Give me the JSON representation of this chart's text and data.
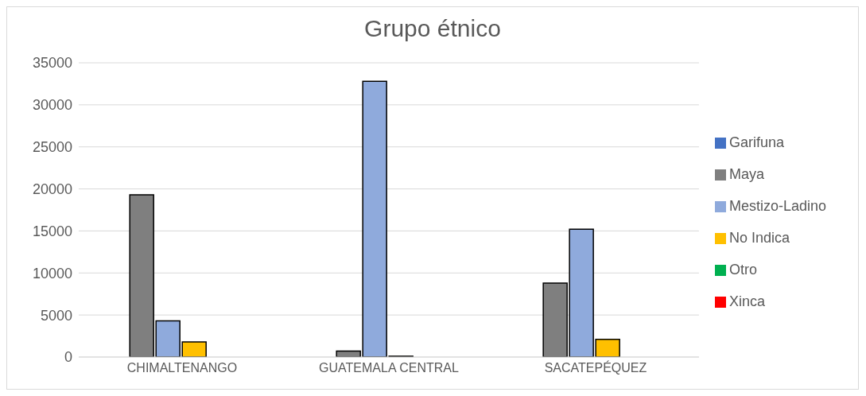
{
  "chart_data": {
    "type": "bar",
    "title": "Grupo étnico",
    "categories": [
      "CHIMALTENANGO",
      "GUATEMALA CENTRAL",
      "SACATEPÉQUEZ"
    ],
    "series": [
      {
        "name": "Garifuna",
        "color": "#4472c4",
        "values": [
          0,
          0,
          0
        ]
      },
      {
        "name": "Maya",
        "color": "#7f7f7f",
        "values": [
          19300,
          700,
          8800
        ]
      },
      {
        "name": "Mestizo-Ladino",
        "color": "#8faadc",
        "values": [
          4300,
          32800,
          15200
        ]
      },
      {
        "name": "No Indica",
        "color": "#ffc000",
        "values": [
          1800,
          100,
          2100
        ]
      },
      {
        "name": "Otro",
        "color": "#00b050",
        "values": [
          0,
          0,
          0
        ]
      },
      {
        "name": "Xinca",
        "color": "#ff0000",
        "values": [
          0,
          0,
          0
        ]
      }
    ],
    "ylim": [
      0,
      35000
    ],
    "yticks": [
      0,
      5000,
      10000,
      15000,
      20000,
      25000,
      30000,
      35000
    ],
    "grid": "y",
    "legend": "right"
  }
}
